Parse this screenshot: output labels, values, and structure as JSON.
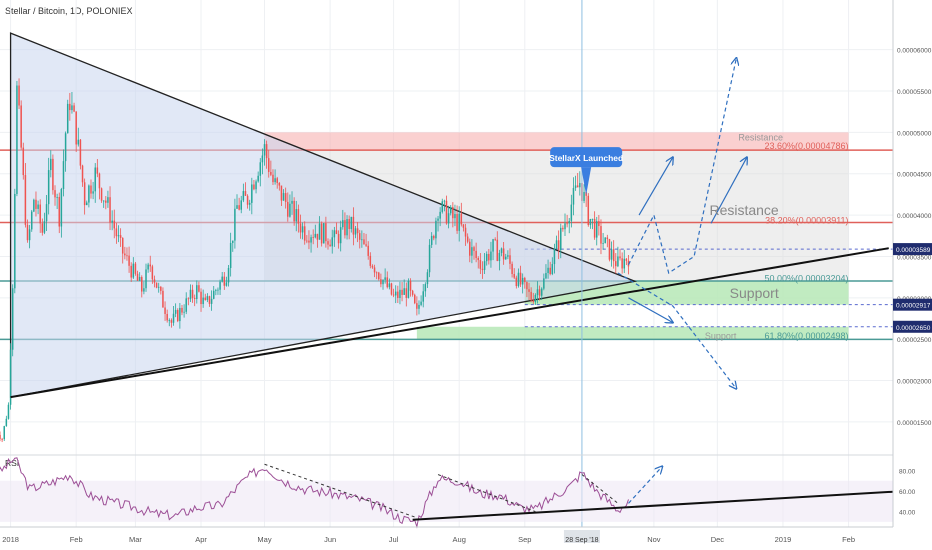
{
  "header": {
    "title": "Stellar / Bitcoin, 1D, POLONIEX"
  },
  "chart_data": {
    "type": "candlestick",
    "main": {
      "ylim": [
        1.1e-06,
        6.6e-06
      ],
      "y_ticks": [
        {
          "v": 1.5e-06,
          "label": "0.00001500"
        },
        {
          "v": 2e-06,
          "label": "0.00002000"
        },
        {
          "v": 2.5e-06,
          "label": "0.00002500"
        },
        {
          "v": 3e-06,
          "label": "0.00003000"
        },
        {
          "v": 3.5e-06,
          "label": "0.00003500"
        },
        {
          "v": 4e-06,
          "label": "0.00004000"
        },
        {
          "v": 4.5e-06,
          "label": "0.00004500"
        },
        {
          "v": 5e-06,
          "label": "0.00005000"
        },
        {
          "v": 5.5e-06,
          "label": "0.00005500"
        },
        {
          "v": 6e-06,
          "label": "0.00006000"
        }
      ],
      "price_tags": [
        {
          "v": 3.589e-06,
          "label": "0.00003589"
        },
        {
          "v": 2.917e-06,
          "label": "0.00002917"
        },
        {
          "v": 2.65e-06,
          "label": "0.00002650"
        }
      ]
    },
    "x_ticks": [
      {
        "d": "2018-01-01",
        "label": "2018"
      },
      {
        "d": "2018-02-01",
        "label": "Feb"
      },
      {
        "d": "2018-03-01",
        "label": "Mar"
      },
      {
        "d": "2018-04-01",
        "label": "Apr"
      },
      {
        "d": "2018-05-01",
        "label": "May"
      },
      {
        "d": "2018-06-01",
        "label": "Jun"
      },
      {
        "d": "2018-07-01",
        "label": "Jul"
      },
      {
        "d": "2018-08-01",
        "label": "Aug"
      },
      {
        "d": "2018-09-01",
        "label": "Sep"
      },
      {
        "d": "2018-11-01",
        "label": "Nov"
      },
      {
        "d": "2018-12-01",
        "label": "Dec"
      },
      {
        "d": "2019-01-01",
        "label": "2019"
      },
      {
        "d": "2019-02-01",
        "label": "Feb"
      }
    ],
    "cursor": {
      "d": "2018-09-28",
      "label": "28 Sep '18"
    },
    "price_path": [
      [
        "2017-12-25",
        1.4e-06
      ],
      [
        "2017-12-28",
        1.3e-06
      ],
      [
        "2017-12-31",
        1.7e-06
      ],
      [
        "2018-01-02",
        3.2e-06
      ],
      [
        "2018-01-04",
        5.5e-06
      ],
      [
        "2018-01-06",
        4.8e-06
      ],
      [
        "2018-01-09",
        3.6e-06
      ],
      [
        "2018-01-12",
        4.2e-06
      ],
      [
        "2018-01-16",
        3.8e-06
      ],
      [
        "2018-01-20",
        4.6e-06
      ],
      [
        "2018-01-24",
        4e-06
      ],
      [
        "2018-01-27",
        5e-06
      ],
      [
        "2018-01-29",
        5.4e-06
      ],
      [
        "2018-02-01",
        5e-06
      ],
      [
        "2018-02-05",
        4.2e-06
      ],
      [
        "2018-02-10",
        4.5e-06
      ],
      [
        "2018-02-16",
        4.1e-06
      ],
      [
        "2018-02-22",
        3.6e-06
      ],
      [
        "2018-02-28",
        3.3e-06
      ],
      [
        "2018-03-04",
        3.1e-06
      ],
      [
        "2018-03-08",
        3.4e-06
      ],
      [
        "2018-03-13",
        3e-06
      ],
      [
        "2018-03-18",
        2.7e-06
      ],
      [
        "2018-03-24",
        2.9e-06
      ],
      [
        "2018-03-30",
        3.1e-06
      ],
      [
        "2018-04-03",
        2.9e-06
      ],
      [
        "2018-04-08",
        3.1e-06
      ],
      [
        "2018-04-13",
        3.3e-06
      ],
      [
        "2018-04-18",
        4.1e-06
      ],
      [
        "2018-04-23",
        4.2e-06
      ],
      [
        "2018-04-28",
        4.6e-06
      ],
      [
        "2018-05-01",
        4.8e-06
      ],
      [
        "2018-05-05",
        4.4e-06
      ],
      [
        "2018-05-10",
        4.2e-06
      ],
      [
        "2018-05-15",
        4e-06
      ],
      [
        "2018-05-20",
        3.8e-06
      ],
      [
        "2018-05-27",
        3.8e-06
      ],
      [
        "2018-06-03",
        3.7e-06
      ],
      [
        "2018-06-10",
        3.9e-06
      ],
      [
        "2018-06-17",
        3.6e-06
      ],
      [
        "2018-06-24",
        3.3e-06
      ],
      [
        "2018-07-01",
        3e-06
      ],
      [
        "2018-07-08",
        3.1e-06
      ],
      [
        "2018-07-12",
        2.8e-06
      ],
      [
        "2018-07-17",
        3.4e-06
      ],
      [
        "2018-07-22",
        4.1e-06
      ],
      [
        "2018-07-27",
        4e-06
      ],
      [
        "2018-08-01",
        3.9e-06
      ],
      [
        "2018-08-06",
        3.6e-06
      ],
      [
        "2018-08-11",
        3.4e-06
      ],
      [
        "2018-08-17",
        3.6e-06
      ],
      [
        "2018-08-23",
        3.5e-06
      ],
      [
        "2018-08-29",
        3.2e-06
      ],
      [
        "2018-09-04",
        3e-06
      ],
      [
        "2018-09-10",
        3.2e-06
      ],
      [
        "2018-09-16",
        3.6e-06
      ],
      [
        "2018-09-21",
        4e-06
      ],
      [
        "2018-09-27",
        4.4e-06
      ],
      [
        "2018-10-01",
        4e-06
      ],
      [
        "2018-10-05",
        3.8e-06
      ],
      [
        "2018-10-10",
        3.6e-06
      ],
      [
        "2018-10-15",
        3.4e-06
      ],
      [
        "2018-10-20",
        3.5e-06
      ]
    ],
    "bands": [
      {
        "from": "2018-05-01",
        "to": "2019-02-01",
        "y1": 5e-06,
        "y2": 4.786e-06,
        "color": "#f5a9a9",
        "opacity": 0.55
      },
      {
        "from": "2018-05-01",
        "to": "2019-02-01",
        "y1": 4.786e-06,
        "y2": 3.204e-06,
        "color": "#d9d9d9",
        "opacity": 0.45
      },
      {
        "from": "2018-09-01",
        "to": "2019-02-01",
        "y1": 3.204e-06,
        "y2": 2.917e-06,
        "color": "#b6e8b6",
        "opacity": 0.85
      },
      {
        "from": "2018-07-12",
        "to": "2019-02-01",
        "y1": 2.65e-06,
        "y2": 2.498e-06,
        "color": "#b6e8b6",
        "opacity": 0.85
      }
    ],
    "hlines": [
      {
        "v": 4.786e-06,
        "color": "#e0605a",
        "width": 1.5
      },
      {
        "v": 3.911e-06,
        "color": "#e0605a",
        "width": 1.5
      },
      {
        "v": 3.204e-06,
        "color": "#4a9a96",
        "width": 1.5
      },
      {
        "v": 2.498e-06,
        "color": "#4a9a96",
        "width": 1.5
      }
    ],
    "level_labels": [
      {
        "text": "Resistance",
        "d": "2019-01-01",
        "v": 4.9e-06,
        "size": 9,
        "color": "#999999",
        "anchor": "end"
      },
      {
        "text": "23.60%(0.00004786)",
        "d": "2019-02-01",
        "v": 4.8e-06,
        "size": 9,
        "color": "#e0605a",
        "anchor": "end"
      },
      {
        "text": "Resistance",
        "d": "2018-12-30",
        "v": 4e-06,
        "size": 14,
        "color": "#888888",
        "anchor": "end"
      },
      {
        "text": "38.20%(0.00003911)",
        "d": "2019-02-01",
        "v": 3.9e-06,
        "size": 9,
        "color": "#e0605a",
        "anchor": "end"
      },
      {
        "text": "50.00%(0.00003204)",
        "d": "2019-02-01",
        "v": 3.2e-06,
        "size": 9,
        "color": "#4a9a96",
        "anchor": "end"
      },
      {
        "text": "Support",
        "d": "2018-12-30",
        "v": 3e-06,
        "size": 14,
        "color": "#888888",
        "anchor": "end"
      },
      {
        "text": "Support",
        "d": "2018-12-10",
        "v": 2.5e-06,
        "size": 9,
        "color": "#999999",
        "anchor": "end"
      },
      {
        "text": "61.80%(0.00002498)",
        "d": "2019-02-01",
        "v": 2.5e-06,
        "size": 9,
        "color": "#4a9a96",
        "anchor": "end"
      }
    ],
    "triangle": [
      {
        "d": "2018-01-01",
        "v": 6.2e-06
      },
      {
        "d": "2018-10-23",
        "v": 3.2e-06
      },
      {
        "d": "2018-01-01",
        "v": 1.8e-06
      }
    ],
    "support_trend": {
      "from": {
        "d": "2018-01-01",
        "v": 1.8e-06
      },
      "to": {
        "d": "2019-02-20",
        "v": 3.6e-06
      }
    },
    "projections": [
      [
        [
          "2018-10-20",
          3.4e-06
        ],
        [
          "2018-11-01",
          4e-06
        ],
        [
          "2018-11-08",
          3.3e-06
        ],
        [
          "2018-11-20",
          3.5e-06
        ],
        [
          "2018-12-10",
          5.9e-06
        ]
      ],
      [
        [
          "2018-10-15",
          3.3e-06
        ],
        [
          "2018-11-10",
          2.9e-06
        ],
        [
          "2018-12-10",
          1.9e-06
        ]
      ]
    ],
    "arrows": [
      {
        "from": [
          "2018-10-25",
          4e-06
        ],
        "to": [
          "2018-11-10",
          4.7e-06
        ]
      },
      {
        "from": [
          "2018-11-28",
          3.9e-06
        ],
        "to": [
          "2018-12-15",
          4.7e-06
        ]
      },
      {
        "from": [
          "2018-10-20",
          3e-06
        ],
        "to": [
          "2018-11-10",
          2.7e-06
        ]
      }
    ],
    "callout": {
      "text": "StellarX Launched",
      "d": "2018-09-30",
      "v": 4.7e-06
    },
    "rsi": {
      "label": "RSI",
      "ylim": [
        25,
        95
      ],
      "y_ticks": [
        {
          "v": 80,
          "label": "80.00"
        },
        {
          "v": 60,
          "label": "60.00"
        },
        {
          "v": 40,
          "label": "40.00"
        }
      ],
      "path": [
        [
          "2017-12-25",
          75
        ],
        [
          "2018-01-03",
          92
        ],
        [
          "2018-01-10",
          62
        ],
        [
          "2018-01-20",
          68
        ],
        [
          "2018-01-29",
          76
        ],
        [
          "2018-02-08",
          55
        ],
        [
          "2018-02-20",
          48
        ],
        [
          "2018-03-01",
          44
        ],
        [
          "2018-03-10",
          38
        ],
        [
          "2018-03-20",
          36
        ],
        [
          "2018-03-30",
          44
        ],
        [
          "2018-04-10",
          46
        ],
        [
          "2018-04-22",
          72
        ],
        [
          "2018-05-01",
          84
        ],
        [
          "2018-05-10",
          70
        ],
        [
          "2018-05-20",
          62
        ],
        [
          "2018-06-01",
          58
        ],
        [
          "2018-06-15",
          52
        ],
        [
          "2018-06-25",
          44
        ],
        [
          "2018-07-05",
          33
        ],
        [
          "2018-07-12",
          30
        ],
        [
          "2018-07-22",
          72
        ],
        [
          "2018-08-01",
          70
        ],
        [
          "2018-08-10",
          58
        ],
        [
          "2018-08-20",
          56
        ],
        [
          "2018-08-30",
          44
        ],
        [
          "2018-09-06",
          42
        ],
        [
          "2018-09-15",
          55
        ],
        [
          "2018-09-23",
          66
        ],
        [
          "2018-09-28",
          78
        ],
        [
          "2018-10-05",
          60
        ],
        [
          "2018-10-15",
          42
        ],
        [
          "2018-10-20",
          48
        ]
      ],
      "divergences": [
        [
          [
            "2018-05-01",
            86
          ],
          [
            "2018-07-12",
            34
          ]
        ],
        [
          [
            "2018-07-22",
            76
          ],
          [
            "2018-09-06",
            40
          ]
        ],
        [
          [
            "2018-09-28",
            76
          ],
          [
            "2018-10-15",
            48
          ]
        ]
      ],
      "trend": {
        "from": [
          "2018-07-10",
          32
        ],
        "to": [
          "2019-02-28",
          60
        ]
      },
      "arrow": {
        "from": [
          "2018-10-20",
          48
        ],
        "to": [
          "2018-11-05",
          84
        ]
      }
    }
  }
}
